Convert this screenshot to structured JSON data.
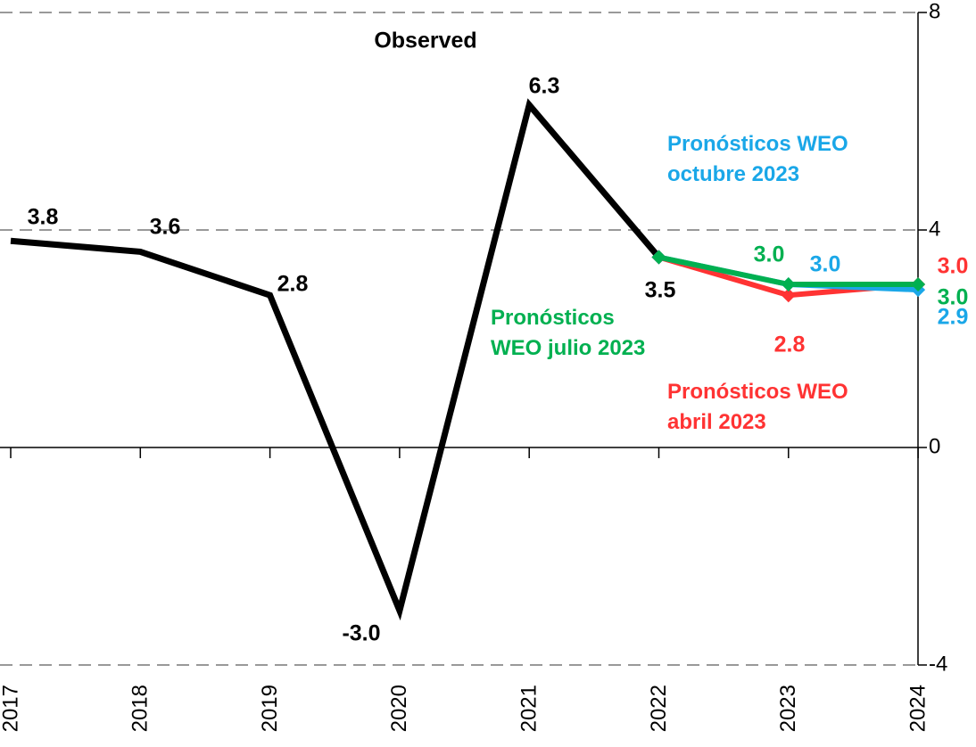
{
  "chart_data": {
    "type": "line",
    "categories": [
      "2017",
      "2018",
      "2019",
      "2020",
      "2021",
      "2022",
      "2023",
      "2024"
    ],
    "series": [
      {
        "name": "Observed",
        "color": "#000000",
        "values": [
          3.8,
          3.6,
          2.8,
          -3.0,
          6.3,
          3.5,
          null,
          null
        ],
        "value_labels": [
          "3.8",
          "3.6",
          "2.8",
          "-3.0",
          "6.3",
          "3.5",
          null,
          null
        ]
      },
      {
        "name": "Pronósticos WEO abril 2023",
        "color": "#ff3333",
        "values": [
          null,
          null,
          null,
          null,
          null,
          3.5,
          2.8,
          3.0
        ],
        "value_labels": [
          null,
          null,
          null,
          null,
          null,
          null,
          "2.8",
          "3.0"
        ]
      },
      {
        "name": "Pronósticos WEO octubre 2023",
        "color": "#1aa7e8",
        "values": [
          null,
          null,
          null,
          null,
          null,
          3.5,
          3.0,
          2.9
        ],
        "value_labels": [
          null,
          null,
          null,
          null,
          null,
          null,
          "3.0",
          "2.9"
        ]
      },
      {
        "name": "Pronósticos WEO julio 2023",
        "color": "#00b050",
        "values": [
          null,
          null,
          null,
          null,
          null,
          3.5,
          3.0,
          3.0
        ],
        "value_labels": [
          null,
          null,
          null,
          null,
          null,
          null,
          "3.0",
          "3.0"
        ]
      }
    ],
    "ylim": [
      -4,
      8
    ],
    "yticks": [
      8,
      4,
      0,
      -4
    ],
    "grid": true
  }
}
